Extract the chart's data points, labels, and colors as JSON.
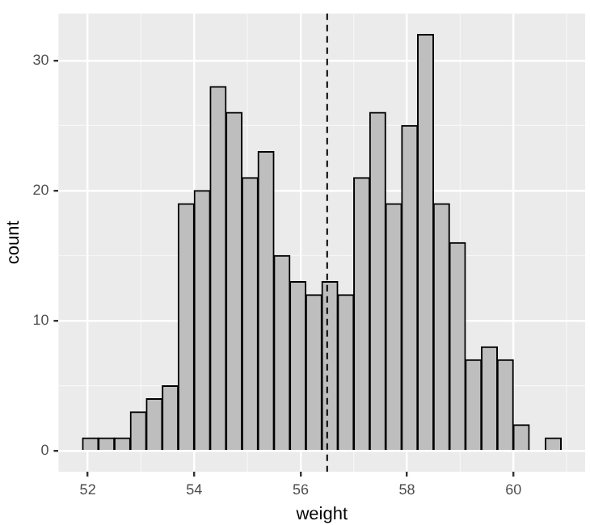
{
  "chart_data": {
    "type": "histogram",
    "xlabel": "weight",
    "ylabel": "count",
    "bins": [
      51.9,
      52.2,
      52.5,
      52.8,
      53.1,
      53.4,
      53.7,
      54.0,
      54.3,
      54.6,
      54.9,
      55.2,
      55.5,
      55.8,
      56.1,
      56.4,
      56.7,
      57.0,
      57.3,
      57.6,
      57.9,
      58.2,
      58.5,
      58.8,
      59.1,
      59.4,
      59.7,
      60.0,
      60.3,
      60.6,
      60.9
    ],
    "values": [
      1,
      1,
      1,
      3,
      4,
      5,
      19,
      20,
      28,
      26,
      21,
      23,
      15,
      13,
      12,
      13,
      12,
      21,
      26,
      19,
      25,
      32,
      19,
      16,
      7,
      8,
      7,
      2,
      0,
      1
    ],
    "color": "#bebebe",
    "xlim": [
      51.45,
      61.35
    ],
    "xticks": [
      52,
      54,
      56,
      58,
      60
    ],
    "ylim": [
      -1.6,
      33.6
    ],
    "yticks": [
      0,
      10,
      20,
      30
    ],
    "grid": true,
    "ref_lines": [
      {
        "axis": "x",
        "value": 56.5,
        "color": "#000000",
        "line_style": "dashed"
      }
    ]
  }
}
